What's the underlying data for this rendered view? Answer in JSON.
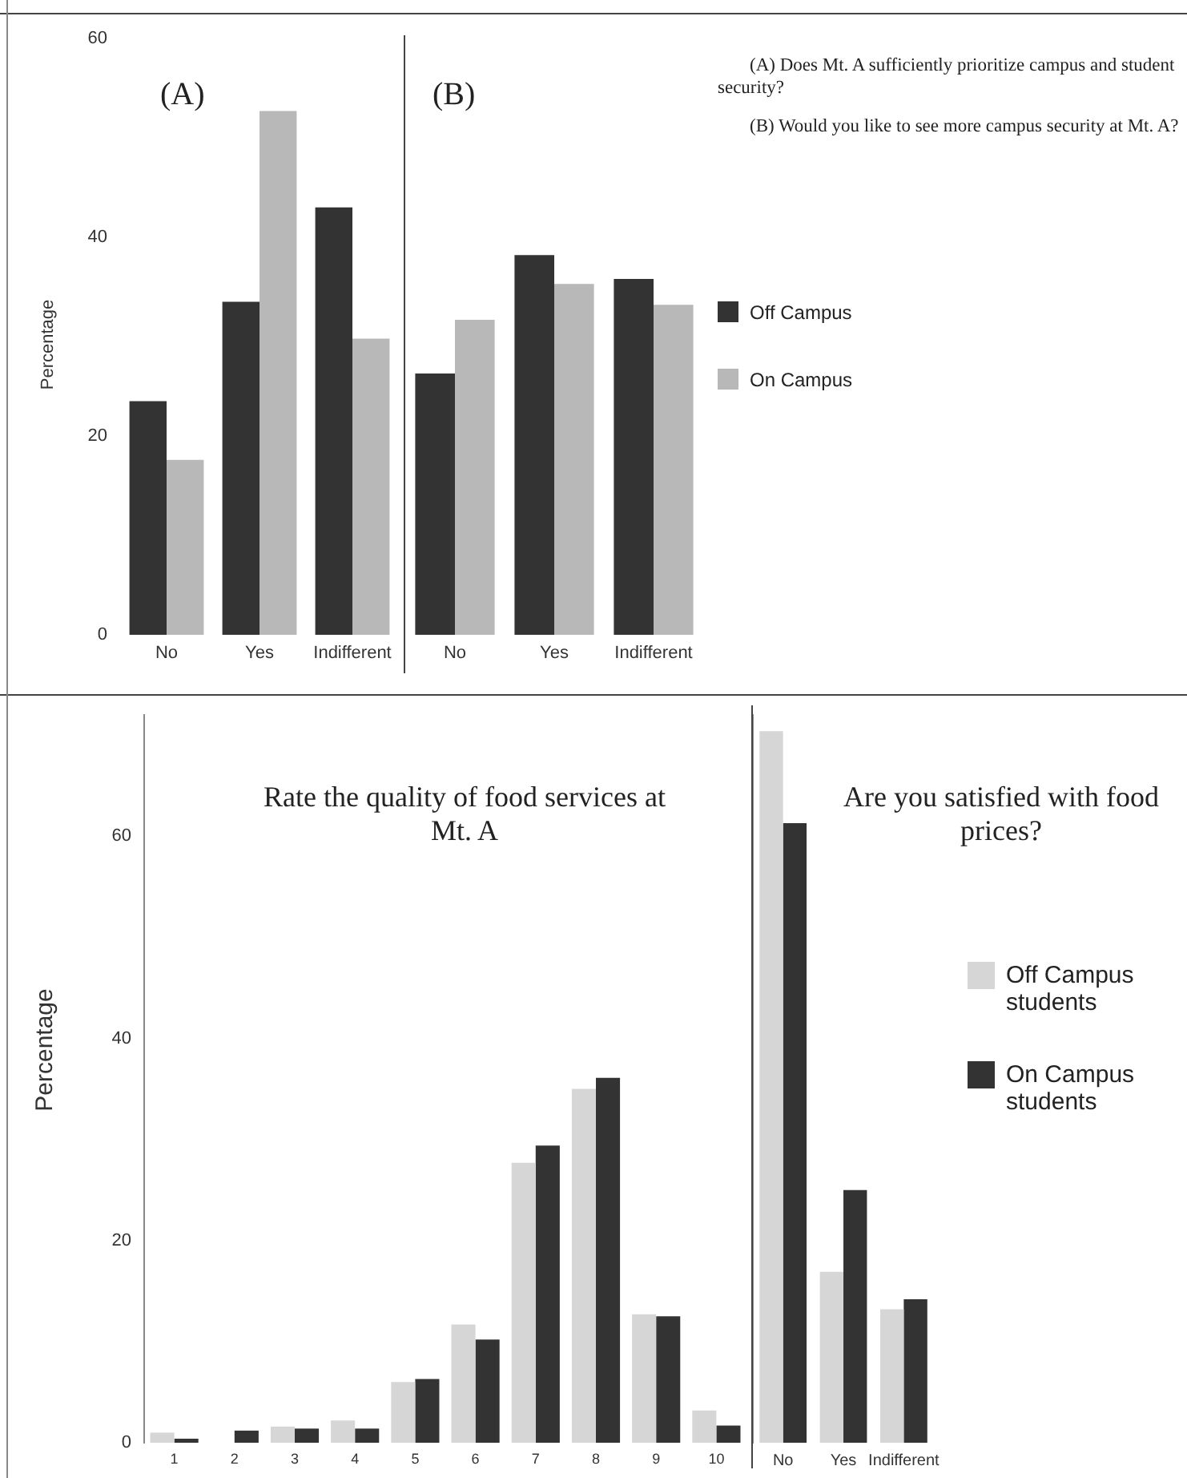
{
  "chart_data": [
    {
      "type": "bar",
      "title": "(A)",
      "ylabel": "Percentage",
      "categories": [
        "No",
        "Yes",
        "Indifferent"
      ],
      "series": [
        {
          "color": "#333333",
          "values": [
            23.5,
            33.5,
            43
          ]
        },
        {
          "color": "#b8b8b8",
          "values": [
            17.6,
            52.7,
            29.8
          ]
        }
      ],
      "ylim": [
        0,
        60
      ],
      "yticks": [
        0,
        20,
        40,
        60
      ],
      "grid": false
    },
    {
      "type": "bar",
      "title": "(B)",
      "categories": [
        "No",
        "Yes",
        "Indifferent"
      ],
      "series": [
        {
          "name": "Off Campus",
          "color": "#333333",
          "values": [
            26.3,
            38.2,
            35.8
          ]
        },
        {
          "name": "On Campus",
          "color": "#b8b8b8",
          "values": [
            31.7,
            35.3,
            33.2
          ]
        }
      ],
      "ylim": [
        0,
        60
      ],
      "yticks": [
        0,
        20,
        40,
        60
      ],
      "grid": false,
      "tick_labels": "x",
      "legend": "right",
      "annotations": [
        "(A) Does Mt. A sufficiently prioritize campus and student security?",
        "(B) Would you like to see more campus security at Mt. A?"
      ]
    },
    {
      "type": "bar",
      "title": "Rate the quality of food services at Mt. A",
      "ylabel": "Percentage",
      "categories": [
        "1",
        "2",
        "3",
        "4",
        "5",
        "6",
        "7",
        "8",
        "9",
        "10"
      ],
      "series": [
        {
          "color": "#d6d6d6",
          "values": [
            1.0,
            0,
            1.6,
            2.2,
            6.0,
            11.7,
            27.7,
            35.0,
            12.7,
            3.2
          ]
        },
        {
          "color": "#333333",
          "values": [
            0.4,
            1.2,
            1.4,
            1.4,
            6.3,
            10.2,
            29.4,
            36.1,
            12.5,
            1.7
          ]
        }
      ],
      "ylim": [
        0,
        72
      ],
      "yticks": [
        0,
        20,
        40,
        60
      ],
      "grid": false
    },
    {
      "type": "bar",
      "title": "Are you satisfied with food prices?",
      "categories": [
        "No",
        "Yes",
        "Indifferent"
      ],
      "series": [
        {
          "name": "Off Campus students",
          "color": "#d6d6d6",
          "values": [
            70.4,
            16.9,
            13.2
          ]
        },
        {
          "name": "On Campus students",
          "color": "#333333",
          "values": [
            61.3,
            25.0,
            14.2
          ]
        }
      ],
      "ylim": [
        0,
        72
      ],
      "yticks": [
        0,
        20,
        40,
        60
      ],
      "grid": false,
      "tick_labels": "x",
      "legend": "right"
    }
  ]
}
